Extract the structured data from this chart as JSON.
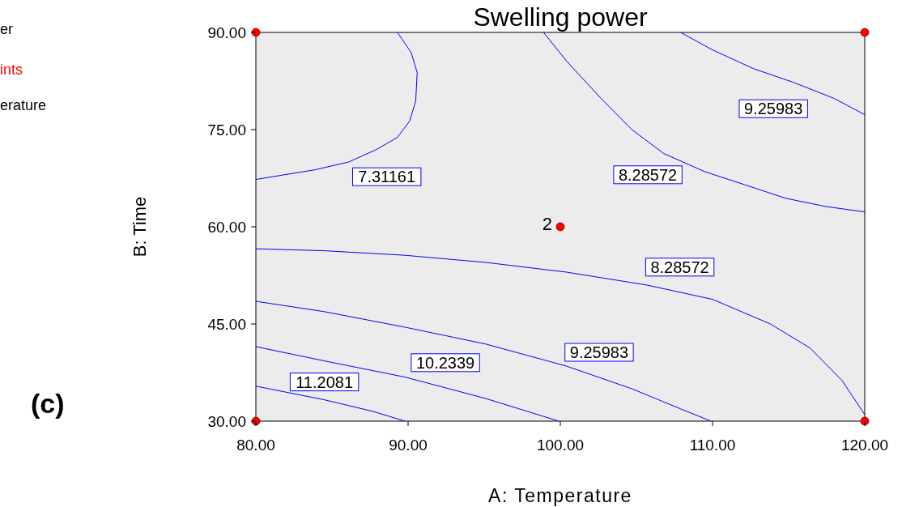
{
  "chart_data": {
    "type": "scatter",
    "title": "Swelling power",
    "xlabel": "A: Temperature",
    "ylabel": "B: Time",
    "xlim": [
      80,
      120
    ],
    "ylim": [
      30,
      90
    ],
    "xticks": [
      {
        "value": 80,
        "label": "80.00"
      },
      {
        "value": 90,
        "label": "90.00"
      },
      {
        "value": 100,
        "label": "100.00"
      },
      {
        "value": 110,
        "label": "110.00"
      },
      {
        "value": 120,
        "label": "120.00"
      }
    ],
    "yticks": [
      {
        "value": 30,
        "label": "30.00"
      },
      {
        "value": 45,
        "label": "45.00"
      },
      {
        "value": 60,
        "label": "60.00"
      },
      {
        "value": 75,
        "label": "75.00"
      },
      {
        "value": 90,
        "label": "90.00"
      }
    ],
    "grid": false,
    "legend": false,
    "series": [
      {
        "marker": "circle",
        "color": "#ff0000",
        "x": [
          80,
          120,
          80,
          120,
          100
        ],
        "values": [
          90,
          90,
          30,
          30,
          60
        ]
      },
      {
        "type": "line",
        "name": "7.31161",
        "color": "#0000ff",
        "x": [
          89.3,
          90.2,
          90.6,
          90.5,
          90.1,
          89.3,
          87.9,
          86.1,
          83.9,
          81.8,
          80
        ],
        "values": [
          90,
          86.9,
          83.8,
          79.4,
          76.3,
          73.8,
          71.9,
          70,
          68.8,
          68,
          67.3
        ]
      },
      {
        "type": "line",
        "name": "8.28572",
        "color": "#0000ff",
        "x": [
          98.9,
          100.4,
          102.6,
          104.7,
          106.8,
          109.5,
          112.1,
          114.8,
          117.5,
          120
        ],
        "values": [
          90,
          85.6,
          80,
          75,
          71.3,
          68.5,
          66.5,
          64.4,
          63.1,
          62.3
        ]
      },
      {
        "type": "line",
        "name": "9.25983",
        "color": "#0000ff",
        "x": [
          107.9,
          110,
          112.7,
          115.3,
          118,
          120
        ],
        "values": [
          90,
          87.3,
          84.4,
          82.3,
          79.8,
          77.3
        ]
      },
      {
        "type": "line",
        "name": "8.28572",
        "color": "#0000ff",
        "x": [
          80,
          84.5,
          89.8,
          95.1,
          100.4,
          105.7,
          110,
          113.8,
          116.4,
          118.5,
          120
        ],
        "values": [
          56.6,
          56.3,
          55.6,
          54.5,
          53,
          51,
          48.8,
          45,
          41.3,
          36.3,
          31
        ]
      },
      {
        "type": "line",
        "name": "9.25983",
        "color": "#0000ff",
        "x": [
          80,
          84.5,
          89.8,
          95.1,
          100.4,
          104.7,
          107.9,
          109.9
        ],
        "values": [
          48.5,
          46.9,
          44.5,
          41.9,
          38.5,
          35,
          31.9,
          30
        ]
      },
      {
        "type": "line",
        "name": "10.2339",
        "color": "#0000ff",
        "x": [
          80,
          84.5,
          89.8,
          95.1,
          99.9
        ],
        "values": [
          41.5,
          39.3,
          36.8,
          33.5,
          30
        ]
      },
      {
        "type": "line",
        "name": "11.2081",
        "color": "#0000ff",
        "x": [
          80,
          84.5,
          87.7,
          89.8
        ],
        "values": [
          35.4,
          33.3,
          31.5,
          30
        ]
      }
    ],
    "annotations": [
      {
        "text": "2",
        "x": 100,
        "y": 60
      },
      "er",
      "ints",
      "erature",
      "(c)"
    ]
  }
}
